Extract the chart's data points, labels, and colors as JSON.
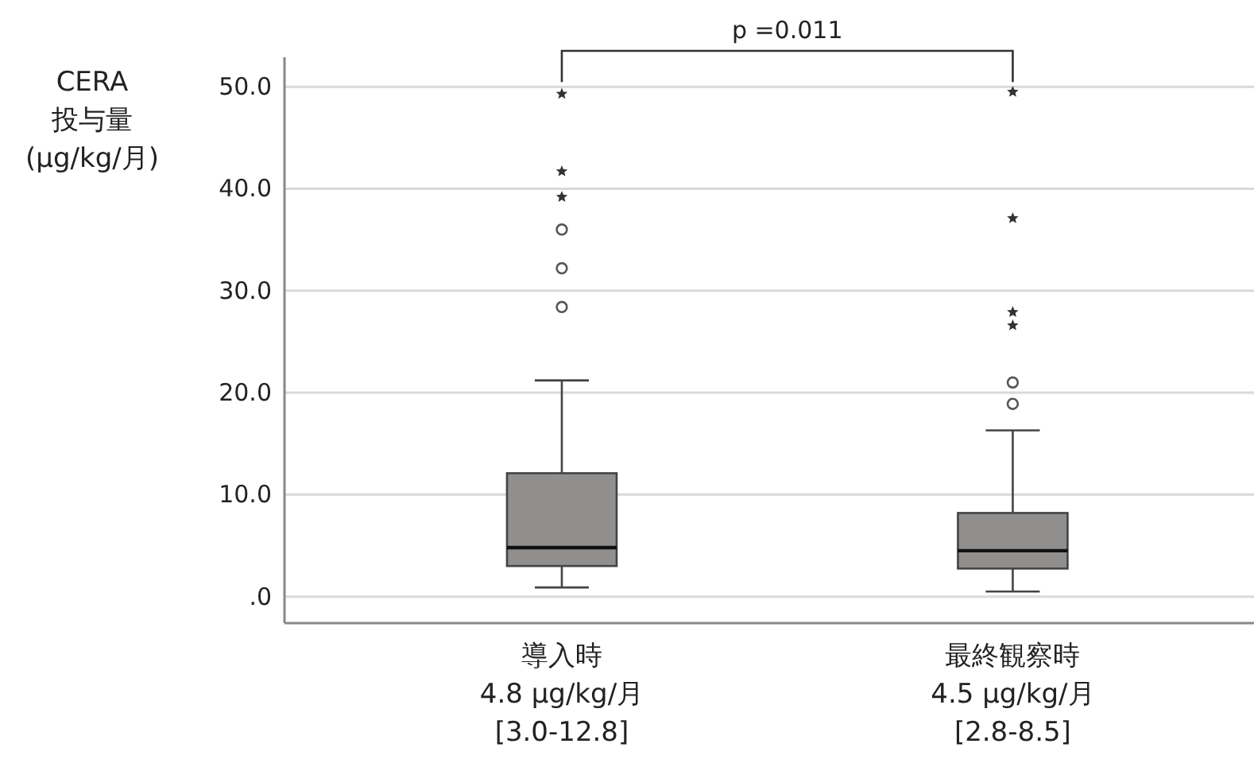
{
  "chart_data": {
    "type": "box",
    "ylabel": "CERA\n投与量\n(μg/kg/月)",
    "categories": [
      "導入時\n4.8 μg/kg/月\n[3.0-12.8]",
      "最終観察時\n4.5 μg/kg/月\n[2.8-8.5]"
    ],
    "boxes": [
      {
        "low": 0.9,
        "q1": 3.0,
        "median": 4.8,
        "q3": 12.1,
        "high": 21.2,
        "outliers": [
          28.4,
          32.2,
          36.0
        ]
      },
      {
        "low": 0.5,
        "q1": 2.75,
        "median": 4.5,
        "q3": 8.2,
        "high": 16.3,
        "outliers": [
          18.9,
          21.0
        ]
      }
    ],
    "series": [
      {
        "type": "scatter",
        "marker": "star",
        "color": "#333333",
        "x": [
          "導入時\n4.8 μg/kg/月\n[3.0-12.8]",
          "導入時\n4.8 μg/kg/月\n[3.0-12.8]",
          "導入時\n4.8 μg/kg/月\n[3.0-12.8]",
          "最終観察時\n4.5 μg/kg/月\n[2.8-8.5]",
          "最終観察時\n4.5 μg/kg/月\n[2.8-8.5]",
          "最終観察時\n4.5 μg/kg/月\n[2.8-8.5]",
          "最終観察時\n4.5 μg/kg/月\n[2.8-8.5]"
        ],
        "values": [
          39.2,
          41.7,
          49.3,
          26.6,
          27.9,
          37.1,
          49.5
        ]
      }
    ],
    "color": "#918e8e",
    "ylim": [
      -2.6,
      52.9
    ],
    "yticks": [
      {
        "value": 0,
        "label": ".0"
      },
      {
        "value": 10,
        "label": "10.0"
      },
      {
        "value": 20,
        "label": "20.0"
      },
      {
        "value": 30,
        "label": "30.0"
      },
      {
        "value": 40,
        "label": "40.0"
      },
      {
        "value": 50,
        "label": "50.0"
      }
    ],
    "grid": "y",
    "annotations": [
      "p =0.011"
    ]
  }
}
